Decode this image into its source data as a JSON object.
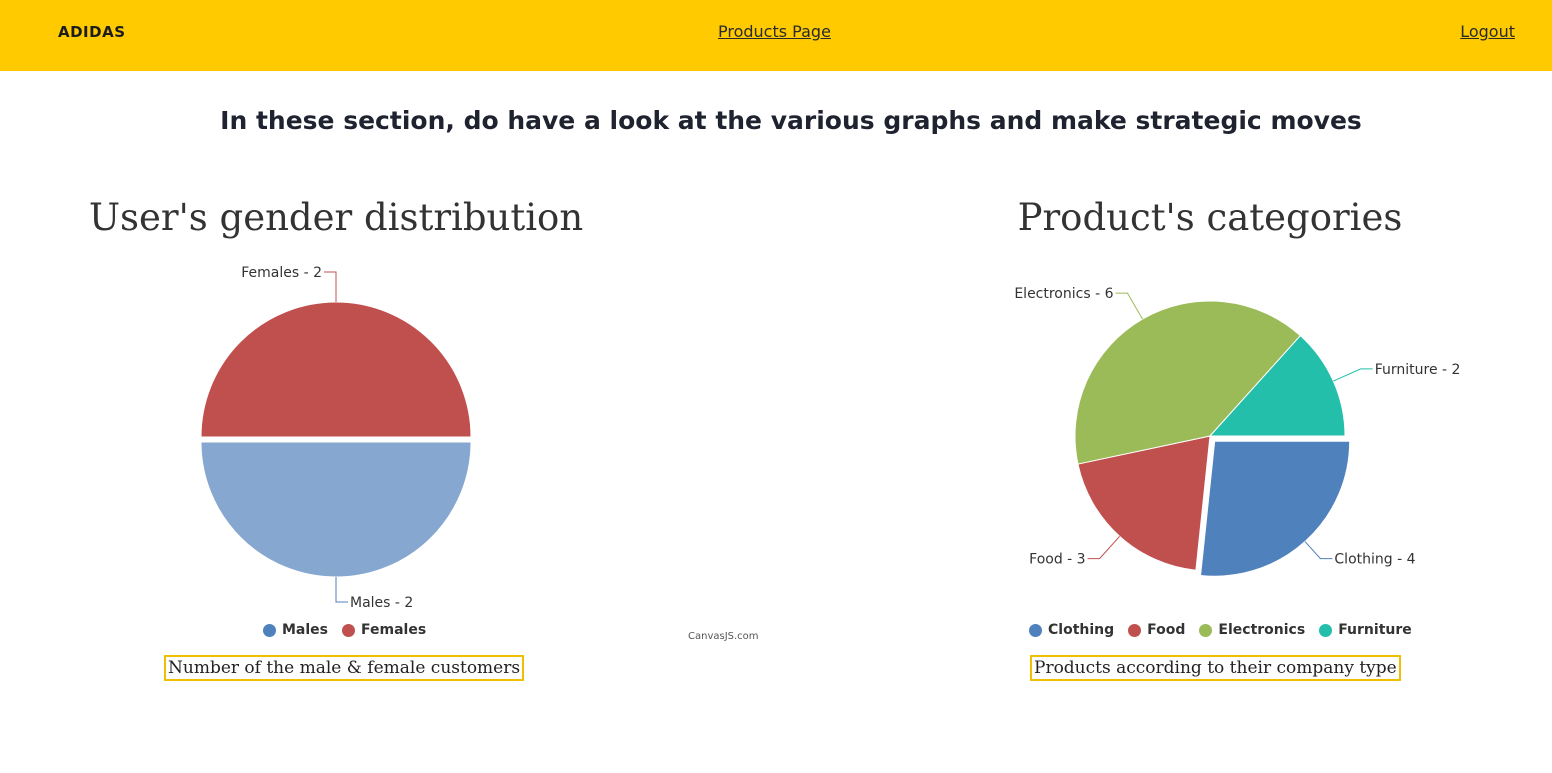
{
  "nav": {
    "brand": "ADIDAS",
    "products_link": "Products Page",
    "logout_link": "Logout"
  },
  "headline": "In these section, do have a look at the various graphs and make strategic moves",
  "credit": "CanvasJS.com",
  "chart_data": [
    {
      "type": "pie",
      "title": "User's gender distribution",
      "caption": "Number of the male & female customers",
      "slices": [
        {
          "name": "Males",
          "value": 2,
          "label": "Males - 2",
          "color": "#4f81bc",
          "exploded": true
        },
        {
          "name": "Females",
          "value": 2,
          "label": "Females - 2",
          "color": "#c0504e",
          "exploded": false
        }
      ],
      "legend_placement": "bottom"
    },
    {
      "type": "pie",
      "title": "Product's categories",
      "caption": "Products according to their company type",
      "slices": [
        {
          "name": "Clothing",
          "value": 4,
          "label": "Clothing - 4",
          "color": "#4f81bc",
          "exploded": true
        },
        {
          "name": "Food",
          "value": 3,
          "label": "Food - 3",
          "color": "#c0504e",
          "exploded": false
        },
        {
          "name": "Electronics",
          "value": 6,
          "label": "Electronics - 6",
          "color": "#9bbb58",
          "exploded": false
        },
        {
          "name": "Furniture",
          "value": 2,
          "label": "Furniture - 2",
          "color": "#23bfaa",
          "exploded": false
        }
      ],
      "legend_placement": "bottom"
    }
  ]
}
